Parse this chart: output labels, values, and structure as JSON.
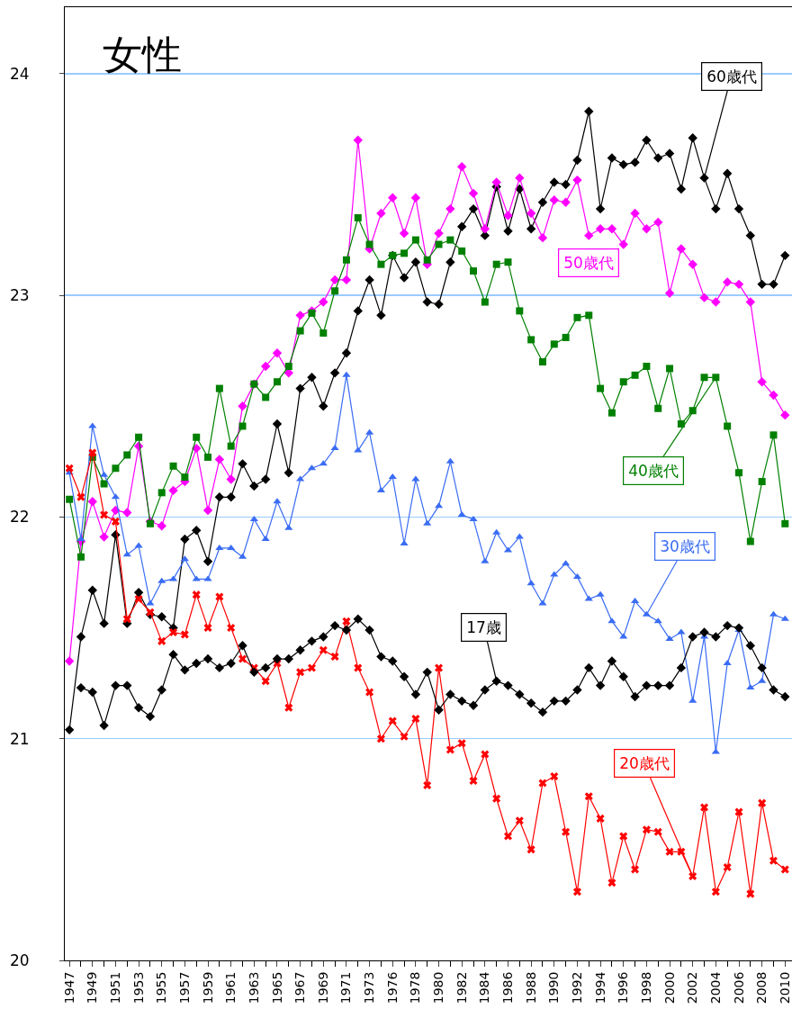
{
  "chart_data": {
    "type": "line",
    "title": "女性",
    "categories": [
      "1947",
      null,
      "1949",
      null,
      "1951",
      null,
      "1953",
      null,
      "1955",
      null,
      "1957",
      null,
      "1959",
      null,
      "1961",
      null,
      "1963",
      null,
      "1965",
      null,
      "1967",
      null,
      "1969",
      null,
      "1971",
      null,
      "1973",
      null,
      "1976",
      null,
      "1978",
      null,
      "1980",
      null,
      "1982",
      null,
      "1984",
      null,
      "1986",
      null,
      "1988",
      null,
      "1990",
      null,
      "1992",
      null,
      "1994",
      null,
      "1996",
      null,
      "1998",
      null,
      "2000",
      null,
      "2002",
      null,
      "2004",
      null,
      "2006",
      null,
      "2008",
      null,
      "2010"
    ],
    "series": [
      {
        "name": "60歳代",
        "color": "#000000",
        "marker": "diamond",
        "values": [
          21.04,
          21.46,
          21.67,
          21.52,
          21.92,
          21.52,
          21.66,
          21.56,
          21.55,
          21.5,
          21.9,
          21.94,
          21.8,
          22.09,
          22.09,
          22.24,
          22.14,
          22.17,
          22.42,
          22.2,
          22.58,
          22.63,
          22.5,
          22.65,
          22.74,
          22.93,
          23.07,
          22.91,
          23.18,
          23.08,
          23.15,
          22.97,
          22.96,
          23.15,
          23.31,
          23.39,
          23.27,
          23.49,
          23.29,
          23.48,
          23.3,
          23.42,
          23.51,
          23.5,
          23.61,
          23.83,
          23.39,
          23.62,
          23.59,
          23.6,
          23.7,
          23.62,
          23.64,
          23.48,
          23.71,
          23.53,
          23.39,
          23.55,
          23.39,
          23.27,
          23.05,
          23.05,
          23.18
        ]
      },
      {
        "name": "50歳代",
        "color": "#ff00ff",
        "marker": "diamond",
        "values": [
          21.35,
          21.89,
          22.07,
          21.91,
          22.03,
          22.02,
          22.32,
          21.98,
          21.96,
          22.12,
          22.16,
          22.31,
          22.03,
          22.26,
          22.17,
          22.5,
          22.6,
          22.68,
          22.74,
          22.65,
          22.91,
          22.93,
          22.97,
          23.07,
          23.07,
          23.7,
          23.21,
          23.37,
          23.44,
          23.28,
          23.44,
          23.14,
          23.28,
          23.39,
          23.58,
          23.46,
          23.3,
          23.51,
          23.36,
          23.53,
          23.37,
          23.26,
          23.43,
          23.42,
          23.52,
          23.27,
          23.3,
          23.3,
          23.23,
          23.37,
          23.3,
          23.33,
          23.01,
          23.21,
          23.14,
          22.99,
          22.97,
          23.06,
          23.05,
          22.97,
          22.61,
          22.55,
          22.46
        ]
      },
      {
        "name": "40歳代",
        "color": "#008000",
        "marker": "square",
        "values": [
          22.08,
          21.82,
          22.27,
          22.15,
          22.22,
          22.28,
          22.36,
          21.97,
          22.11,
          22.23,
          22.18,
          22.36,
          22.27,
          22.58,
          22.32,
          22.41,
          22.6,
          22.54,
          22.61,
          22.68,
          22.84,
          22.92,
          22.83,
          23.02,
          23.16,
          23.35,
          23.23,
          23.14,
          23.18,
          23.19,
          23.25,
          23.16,
          23.23,
          23.25,
          23.2,
          23.11,
          22.97,
          23.14,
          23.15,
          22.93,
          22.8,
          22.7,
          22.78,
          22.81,
          22.9,
          22.91,
          22.58,
          22.47,
          22.61,
          22.64,
          22.68,
          22.49,
          22.67,
          22.42,
          22.48,
          22.63,
          22.63,
          22.41,
          22.2,
          21.89,
          22.16,
          22.37,
          21.97
        ]
      },
      {
        "name": "30歳代",
        "color": "#3a6cf4",
        "marker": "triangle",
        "values": [
          22.2,
          21.9,
          22.41,
          22.19,
          22.09,
          21.83,
          21.87,
          21.61,
          21.71,
          21.72,
          21.81,
          21.72,
          21.72,
          21.86,
          21.86,
          21.82,
          21.99,
          21.9,
          22.07,
          21.95,
          22.17,
          22.22,
          22.24,
          22.31,
          22.64,
          22.3,
          22.38,
          22.12,
          22.18,
          21.88,
          22.17,
          21.97,
          22.05,
          22.25,
          22.01,
          21.99,
          21.8,
          21.93,
          21.85,
          21.91,
          21.7,
          21.61,
          21.74,
          21.79,
          21.73,
          21.63,
          21.65,
          21.53,
          21.46,
          21.62,
          21.56,
          21.53,
          21.45,
          21.48,
          21.17,
          21.46,
          20.94,
          21.34,
          21.49,
          21.23,
          21.26,
          21.56,
          21.54
        ]
      },
      {
        "name": "20歳代",
        "color": "#ff0000",
        "marker": "cross",
        "values": [
          22.22,
          22.09,
          22.29,
          22.01,
          21.98,
          21.54,
          21.63,
          21.57,
          21.44,
          21.48,
          21.47,
          21.65,
          21.5,
          21.64,
          21.5,
          21.36,
          21.32,
          21.26,
          21.34,
          21.14,
          21.3,
          21.32,
          21.4,
          21.37,
          21.53,
          21.32,
          21.21,
          21.0,
          21.08,
          21.01,
          21.09,
          20.79,
          21.32,
          20.95,
          20.98,
          20.81,
          20.93,
          20.73,
          20.56,
          20.63,
          20.5,
          20.8,
          20.83,
          20.58,
          20.31,
          20.74,
          20.64,
          20.35,
          20.56,
          20.41,
          20.59,
          20.58,
          20.49,
          20.49,
          20.38,
          20.69,
          20.31,
          20.42,
          20.67,
          20.3,
          20.71,
          20.45,
          20.41
        ]
      },
      {
        "name": "17歳",
        "color": "#000000",
        "marker": "diamond",
        "values": [
          null,
          21.23,
          21.21,
          21.06,
          21.24,
          21.24,
          21.14,
          21.1,
          21.22,
          21.38,
          21.31,
          21.34,
          21.36,
          21.32,
          21.34,
          21.42,
          21.3,
          21.32,
          21.36,
          21.36,
          21.4,
          21.44,
          21.46,
          21.51,
          21.49,
          21.54,
          21.49,
          21.37,
          21.35,
          21.28,
          21.2,
          21.3,
          21.13,
          21.2,
          21.17,
          21.15,
          21.22,
          21.26,
          21.24,
          21.2,
          21.16,
          21.12,
          21.17,
          21.17,
          21.22,
          21.32,
          21.24,
          21.35,
          21.28,
          21.19,
          21.24,
          21.24,
          21.24,
          21.32,
          21.46,
          21.48,
          21.46,
          21.51,
          21.5,
          21.42,
          21.32,
          21.22,
          21.19
        ]
      }
    ],
    "ylim": [
      20,
      24.3
    ],
    "yticks": [
      20,
      21,
      22,
      23,
      24
    ],
    "grid": "y",
    "legend": false,
    "line_style": "solid"
  }
}
